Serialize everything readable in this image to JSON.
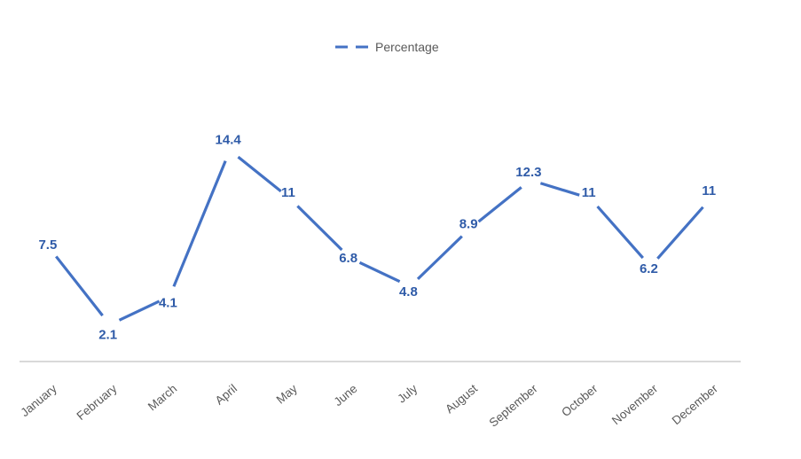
{
  "legend": {
    "label": "Percentage"
  },
  "colors": {
    "series_line": "#4472C4",
    "data_label": "#2F5BA8",
    "axis_label": "#595959",
    "legend_text": "#595959",
    "axis_line": "#D9D9D9",
    "background": "#FFFFFF"
  },
  "chart_data": {
    "type": "line",
    "title": "",
    "categories": [
      "January",
      "February",
      "March",
      "April",
      "May",
      "June",
      "July",
      "August",
      "September",
      "October",
      "November",
      "December"
    ],
    "series": [
      {
        "name": "Percentage",
        "values": [
          7.5,
          2.1,
          4.1,
          14.4,
          11,
          6.8,
          4.8,
          8.9,
          12.3,
          11,
          6.2,
          11
        ]
      }
    ],
    "xlabel": "",
    "ylabel": "",
    "ylim": [
      0,
      16
    ],
    "grid": false,
    "markers": false,
    "line_style": "dashed",
    "legend_position": "top-center",
    "data_labels": true,
    "label_offsets": [
      -4,
      11,
      7,
      -12,
      -7,
      0,
      6,
      -5,
      -9,
      -7,
      2,
      -9
    ],
    "x_tick_rotation_deg": -40
  }
}
